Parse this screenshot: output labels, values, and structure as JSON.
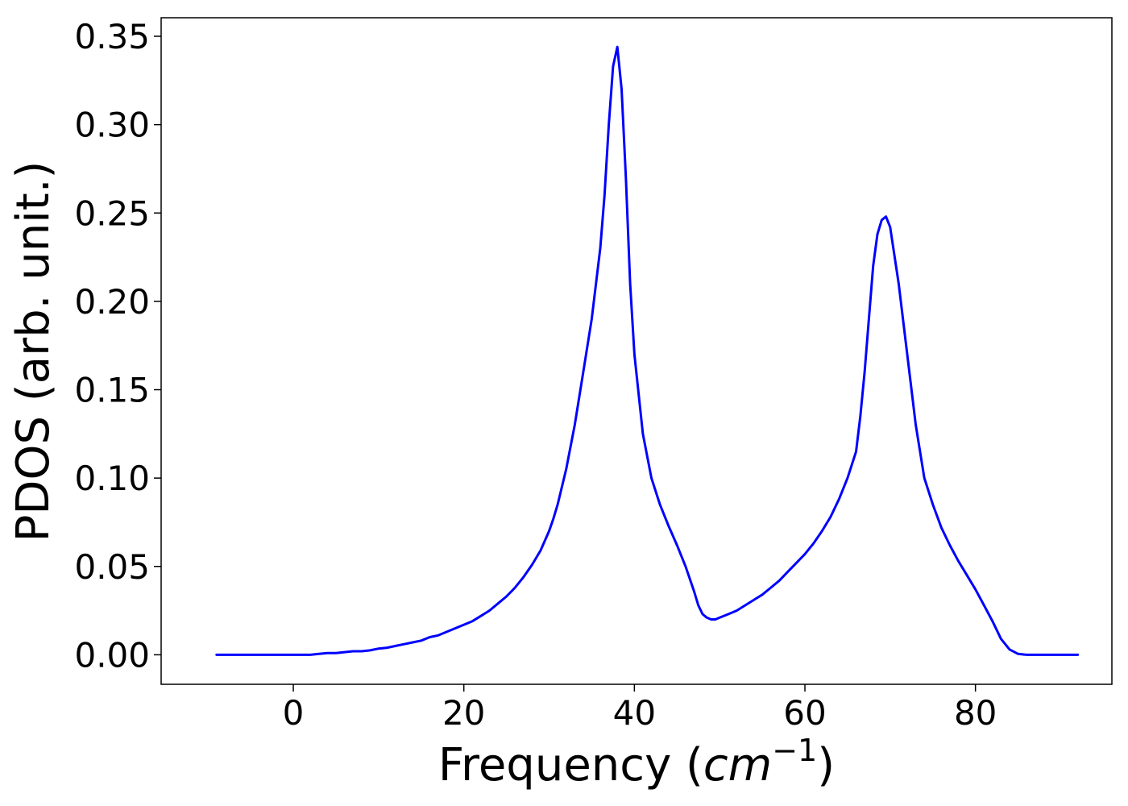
{
  "chart_data": {
    "type": "line",
    "title": "",
    "xlabel": {
      "main": "Frequency (",
      "unit": "cm",
      "exponent": "−1",
      "close": ")"
    },
    "ylabel": "PDOS (arb. unit.)",
    "xlim": [
      -15.5,
      96
    ],
    "ylim": [
      -0.0167,
      0.3605
    ],
    "xticks": [
      0,
      20,
      40,
      60,
      80
    ],
    "xtick_labels": [
      "0",
      "20",
      "40",
      "60",
      "80"
    ],
    "yticks": [
      0.0,
      0.05,
      0.1,
      0.15,
      0.2,
      0.25,
      0.3,
      0.35
    ],
    "ytick_labels": [
      "0.00",
      "0.05",
      "0.10",
      "0.15",
      "0.20",
      "0.25",
      "0.30",
      "0.35"
    ],
    "grid": false,
    "legend": "none",
    "series": [
      {
        "color": "#0000ff",
        "x": [
          -9,
          0,
          2,
          3,
          4,
          5,
          6,
          7,
          8,
          9,
          10,
          11,
          12,
          13,
          14,
          15,
          16,
          17,
          18,
          19,
          20,
          21,
          22,
          23,
          24,
          25,
          26,
          27,
          28,
          29,
          30,
          30.5,
          31,
          32,
          33,
          34,
          35,
          36,
          36.5,
          37,
          37.5,
          38,
          38.5,
          39,
          39.5,
          40,
          41,
          42,
          43,
          44,
          45,
          46,
          47,
          47.5,
          48,
          48.5,
          49,
          49.5,
          50,
          51,
          52,
          53,
          54,
          55,
          56,
          57,
          58,
          59,
          60,
          61,
          62,
          63,
          64,
          65,
          66,
          66.5,
          67,
          67.5,
          68,
          68.5,
          69,
          69.5,
          70,
          71,
          72,
          73,
          74,
          75,
          76,
          77,
          78,
          79,
          80,
          81,
          82,
          83,
          84,
          85,
          86,
          87,
          92
        ],
        "y": [
          0.0,
          0.0,
          0.0,
          0.0005,
          0.001,
          0.001,
          0.0015,
          0.002,
          0.002,
          0.0025,
          0.0035,
          0.004,
          0.005,
          0.006,
          0.007,
          0.008,
          0.01,
          0.011,
          0.013,
          0.015,
          0.017,
          0.019,
          0.022,
          0.025,
          0.029,
          0.033,
          0.038,
          0.044,
          0.051,
          0.059,
          0.07,
          0.077,
          0.085,
          0.105,
          0.13,
          0.16,
          0.19,
          0.23,
          0.26,
          0.3,
          0.333,
          0.344,
          0.32,
          0.27,
          0.21,
          0.17,
          0.125,
          0.1,
          0.085,
          0.073,
          0.062,
          0.05,
          0.036,
          0.028,
          0.023,
          0.021,
          0.02,
          0.02,
          0.021,
          0.023,
          0.025,
          0.028,
          0.031,
          0.034,
          0.038,
          0.042,
          0.047,
          0.052,
          0.057,
          0.063,
          0.07,
          0.078,
          0.088,
          0.1,
          0.115,
          0.135,
          0.16,
          0.19,
          0.22,
          0.238,
          0.246,
          0.248,
          0.242,
          0.21,
          0.17,
          0.13,
          0.1,
          0.085,
          0.072,
          0.062,
          0.053,
          0.045,
          0.037,
          0.028,
          0.019,
          0.009,
          0.003,
          0.0005,
          0.0,
          0.0,
          0.0
        ]
      }
    ]
  }
}
